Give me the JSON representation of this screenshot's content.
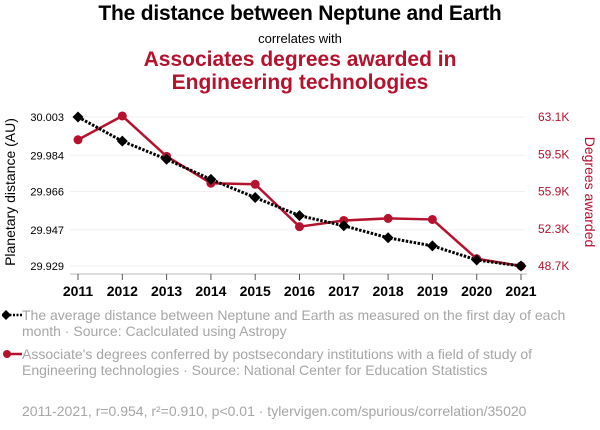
{
  "header": {
    "title": "The distance between Neptune and Earth",
    "subtitle": "correlates with",
    "title2": "Associates degrees awarded in Engineering technologies"
  },
  "legend": [
    {
      "text": "The average distance between Neptune and Earth as measured on the first day of each month · Source: Caclculated using Astropy",
      "color": "#000000",
      "marker": "diamond",
      "line": "dotted"
    },
    {
      "text": "Associate's degrees conferred by postsecondary institutions with a field of study of Engineering technologies · Source: National Center for Education Statistics",
      "color": "#b5122e",
      "marker": "circle",
      "line": "solid"
    }
  ],
  "footer": "2011-2021, r=0.954, r²=0.910, p<0.01 · tylervigen.com/spurious/correlation/35020",
  "chart_data": {
    "type": "line",
    "title": "The distance between Neptune and Earth correlates with Associates degrees awarded in Engineering technologies",
    "x": [
      2011,
      2012,
      2013,
      2014,
      2015,
      2016,
      2017,
      2018,
      2019,
      2020,
      2021
    ],
    "x_tick_labels": [
      "2011",
      "2012",
      "2013",
      "2014",
      "2015",
      "2016",
      "2017",
      "2018",
      "2019",
      "2020",
      "2021"
    ],
    "grid": true,
    "series": [
      {
        "name": "Planetary distance (AU)",
        "axis": "left",
        "color": "#000000",
        "values": [
          30.003,
          29.991,
          29.982,
          29.972,
          29.963,
          29.954,
          29.949,
          29.943,
          29.939,
          29.932,
          29.929
        ]
      },
      {
        "name": "Degrees awarded",
        "axis": "right",
        "color": "#b5122e",
        "values": [
          60900,
          63200,
          59300,
          56700,
          56600,
          52500,
          53100,
          53300,
          53200,
          49400,
          48700
        ]
      }
    ],
    "y_left": {
      "label": "Planetary distance (AU)",
      "ylim": [
        29.929,
        30.003
      ],
      "ticks": [
        "30.003",
        "29.984",
        "29.966",
        "29.947",
        "29.929"
      ],
      "tick_values": [
        30.003,
        29.984,
        29.966,
        29.947,
        29.929
      ]
    },
    "y_right": {
      "label": "Degrees awarded",
      "ylim": [
        48700,
        63100
      ],
      "ticks": [
        "63.1K",
        "59.5K",
        "55.9K",
        "52.3K",
        "48.7K"
      ],
      "tick_values": [
        63100,
        59500,
        55900,
        52300,
        48700
      ]
    }
  }
}
